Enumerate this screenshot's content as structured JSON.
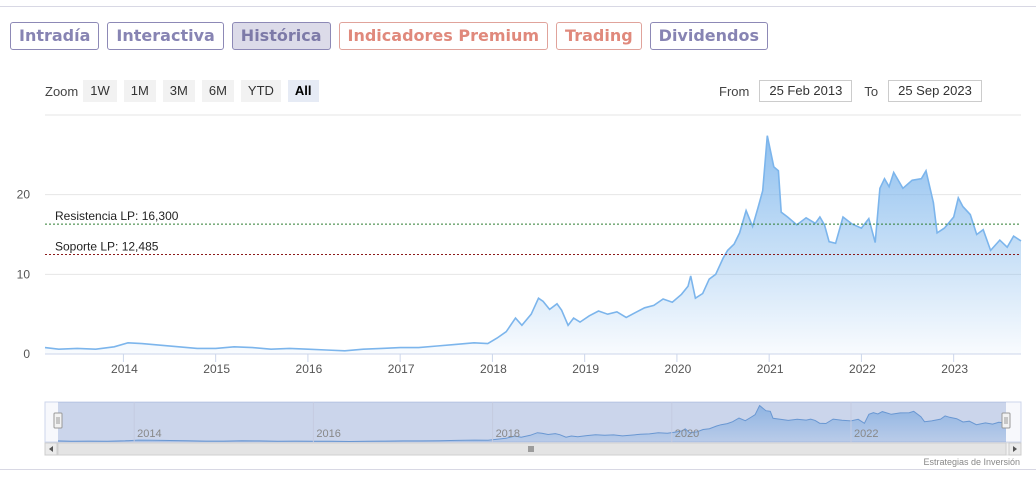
{
  "tabs": [
    {
      "label": "Intradía",
      "style": "normal"
    },
    {
      "label": "Interactiva",
      "style": "normal"
    },
    {
      "label": "Histórica",
      "style": "active"
    },
    {
      "label": "Indicadores Premium",
      "style": "premium"
    },
    {
      "label": "Trading",
      "style": "premium"
    },
    {
      "label": "Dividendos",
      "style": "normal"
    }
  ],
  "zoom": {
    "label": "Zoom",
    "buttons": [
      "1W",
      "1M",
      "3M",
      "6M",
      "YTD",
      "All"
    ],
    "active": "All"
  },
  "range": {
    "from_label": "From",
    "from_value": "25 Feb 2013",
    "to_label": "To",
    "to_value": "25 Sep 2023"
  },
  "credit": "Estrategias de Inversión",
  "colors": {
    "tab_border": "#8d89b6",
    "tab_text": "#8784b3",
    "tab_active_bg": "#dcdbe9",
    "premium": "#e0897c",
    "line": "#7cb5ec",
    "resistance": "#2e7d32",
    "support": "#8b1a1a"
  },
  "chart_data": {
    "type": "area",
    "title": "",
    "xlabel": "",
    "ylabel": "",
    "x_ticks": [
      "2014",
      "2015",
      "2016",
      "2017",
      "2018",
      "2019",
      "2020",
      "2021",
      "2022",
      "2023"
    ],
    "y_ticks": [
      0,
      10,
      20
    ],
    "ylim": [
      0,
      30
    ],
    "xlim": [
      2013.15,
      2023.73
    ],
    "grid": true,
    "series": [
      {
        "values": [
          [
            2013.15,
            0.8
          ],
          [
            2013.3,
            0.6
          ],
          [
            2013.5,
            0.7
          ],
          [
            2013.7,
            0.6
          ],
          [
            2013.9,
            0.9
          ],
          [
            2014.05,
            1.4
          ],
          [
            2014.2,
            1.3
          ],
          [
            2014.4,
            1.1
          ],
          [
            2014.6,
            0.9
          ],
          [
            2014.8,
            0.7
          ],
          [
            2015.0,
            0.7
          ],
          [
            2015.2,
            0.9
          ],
          [
            2015.4,
            0.8
          ],
          [
            2015.6,
            0.6
          ],
          [
            2015.8,
            0.7
          ],
          [
            2016.0,
            0.6
          ],
          [
            2016.2,
            0.5
          ],
          [
            2016.4,
            0.4
          ],
          [
            2016.6,
            0.6
          ],
          [
            2016.8,
            0.7
          ],
          [
            2017.0,
            0.8
          ],
          [
            2017.2,
            0.8
          ],
          [
            2017.4,
            1.0
          ],
          [
            2017.6,
            1.2
          ],
          [
            2017.8,
            1.4
          ],
          [
            2017.95,
            1.3
          ],
          [
            2018.05,
            2.0
          ],
          [
            2018.15,
            2.8
          ],
          [
            2018.25,
            4.5
          ],
          [
            2018.32,
            3.6
          ],
          [
            2018.42,
            5.0
          ],
          [
            2018.5,
            7.0
          ],
          [
            2018.55,
            6.6
          ],
          [
            2018.62,
            5.6
          ],
          [
            2018.7,
            6.3
          ],
          [
            2018.75,
            5.5
          ],
          [
            2018.82,
            3.6
          ],
          [
            2018.88,
            4.5
          ],
          [
            2018.95,
            4.0
          ],
          [
            2019.05,
            4.8
          ],
          [
            2019.15,
            5.4
          ],
          [
            2019.25,
            5.0
          ],
          [
            2019.35,
            5.3
          ],
          [
            2019.45,
            4.6
          ],
          [
            2019.55,
            5.2
          ],
          [
            2019.65,
            5.8
          ],
          [
            2019.75,
            6.1
          ],
          [
            2019.85,
            6.9
          ],
          [
            2019.95,
            6.5
          ],
          [
            2020.05,
            7.5
          ],
          [
            2020.12,
            8.5
          ],
          [
            2020.15,
            9.8
          ],
          [
            2020.2,
            7.0
          ],
          [
            2020.28,
            7.6
          ],
          [
            2020.35,
            9.4
          ],
          [
            2020.42,
            10.0
          ],
          [
            2020.5,
            12.0
          ],
          [
            2020.55,
            13.0
          ],
          [
            2020.62,
            13.8
          ],
          [
            2020.68,
            15.2
          ],
          [
            2020.75,
            18.0
          ],
          [
            2020.82,
            16.0
          ],
          [
            2020.88,
            18.4
          ],
          [
            2020.93,
            20.5
          ],
          [
            2020.98,
            27.4
          ],
          [
            2021.05,
            23.5
          ],
          [
            2021.1,
            23.0
          ],
          [
            2021.13,
            17.8
          ],
          [
            2021.2,
            17.2
          ],
          [
            2021.3,
            16.2
          ],
          [
            2021.4,
            17.1
          ],
          [
            2021.5,
            16.4
          ],
          [
            2021.55,
            17.2
          ],
          [
            2021.6,
            16.2
          ],
          [
            2021.65,
            14.1
          ],
          [
            2021.72,
            13.9
          ],
          [
            2021.8,
            17.2
          ],
          [
            2021.9,
            16.3
          ],
          [
            2022.0,
            15.8
          ],
          [
            2022.08,
            17.0
          ],
          [
            2022.15,
            14.0
          ],
          [
            2022.2,
            20.8
          ],
          [
            2022.25,
            22.0
          ],
          [
            2022.3,
            21.0
          ],
          [
            2022.35,
            22.8
          ],
          [
            2022.45,
            20.8
          ],
          [
            2022.55,
            21.8
          ],
          [
            2022.65,
            22.0
          ],
          [
            2022.7,
            23.0
          ],
          [
            2022.78,
            19.0
          ],
          [
            2022.82,
            15.2
          ],
          [
            2022.9,
            15.8
          ],
          [
            2023.0,
            17.2
          ],
          [
            2023.05,
            19.6
          ],
          [
            2023.1,
            18.5
          ],
          [
            2023.18,
            17.5
          ],
          [
            2023.25,
            15.0
          ],
          [
            2023.32,
            15.6
          ],
          [
            2023.4,
            13.0
          ],
          [
            2023.5,
            14.3
          ],
          [
            2023.58,
            13.4
          ],
          [
            2023.65,
            14.8
          ],
          [
            2023.73,
            14.2
          ]
        ]
      }
    ],
    "annotations": [
      {
        "label": "Resistencia LP: 16,300",
        "y": 16.3,
        "color": "#2e7d32"
      },
      {
        "label": "Soporte LP: 12,485",
        "y": 12.485,
        "color": "#8b1a1a"
      }
    ],
    "navigator_ticks": [
      "2014",
      "2016",
      "2018",
      "2020",
      "2022"
    ]
  }
}
